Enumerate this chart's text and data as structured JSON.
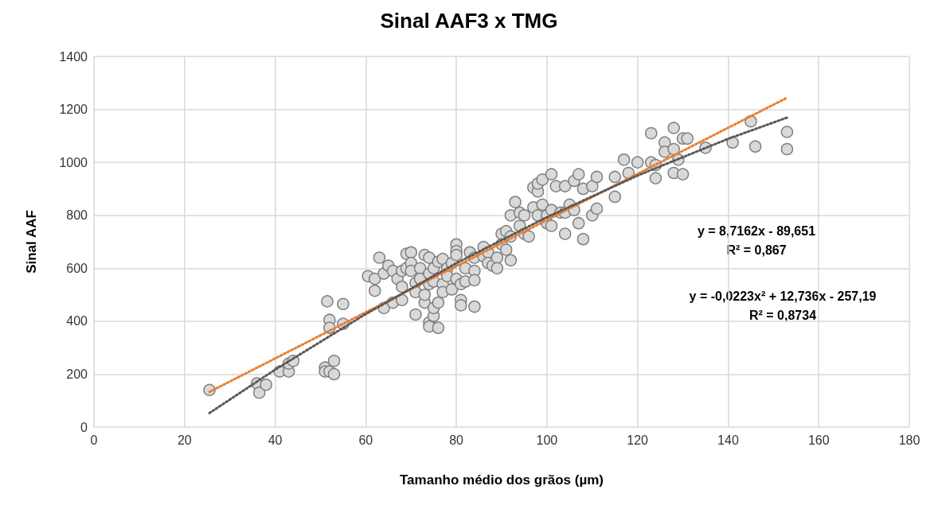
{
  "chart_data": {
    "type": "scatter",
    "title": "Sinal AAF3 x TMG",
    "xlabel": "Tamanho médio dos grãos (µm)",
    "ylabel": "Sinal AAF",
    "xlim": [
      0,
      180
    ],
    "xticks": [
      0,
      20,
      40,
      60,
      80,
      100,
      120,
      140,
      160,
      180
    ],
    "ylim": [
      0,
      1400
    ],
    "yticks": [
      0,
      200,
      400,
      600,
      800,
      1000,
      1200,
      1400
    ],
    "grid": true,
    "marker": "circle",
    "annotations": [
      "y = 8,7162x - 89,651\nR² = 0,867",
      "y = -0,0223x² + 12,736x - 257,19\nR² = 0,8734"
    ],
    "series": [
      {
        "color": "#d9d9d9",
        "x": [
          25.5,
          36,
          36.5,
          38,
          41,
          43,
          43,
          44,
          51,
          51,
          52,
          53,
          53,
          51.5,
          55,
          52,
          52,
          55,
          60.5,
          62,
          62,
          63,
          64,
          64,
          65,
          66,
          66,
          67,
          68,
          68,
          68,
          69,
          69,
          70,
          70,
          70,
          71,
          71,
          71,
          72,
          72,
          73,
          73,
          73,
          74,
          74,
          74,
          74,
          74,
          75,
          75,
          75,
          75,
          76,
          76,
          76,
          77,
          77,
          77,
          78,
          78,
          79,
          79,
          80,
          80,
          80,
          80,
          81,
          81,
          81,
          82,
          82,
          83,
          84,
          84,
          84,
          84,
          86,
          86,
          87,
          87,
          88,
          89,
          89,
          90,
          90,
          91,
          91,
          92,
          92,
          92,
          93,
          94,
          94,
          95,
          95,
          96,
          97,
          97,
          98,
          98,
          98,
          99,
          99,
          100,
          100,
          101,
          101,
          101,
          102,
          103,
          104,
          104,
          104,
          105,
          106,
          106,
          107,
          107,
          108,
          108,
          110,
          110,
          111,
          111,
          115,
          115,
          117,
          118,
          120,
          123,
          123,
          124,
          124,
          126,
          126,
          128,
          128,
          128,
          129,
          130,
          130,
          131,
          135,
          141,
          145,
          146,
          153,
          153
        ],
        "values": [
          140,
          165,
          130,
          160,
          210,
          210,
          240,
          250,
          225,
          210,
          210,
          250,
          200,
          475,
          465,
          405,
          375,
          390,
          570,
          560,
          515,
          640,
          450,
          580,
          610,
          470,
          590,
          560,
          590,
          530,
          480,
          655,
          600,
          660,
          620,
          590,
          545,
          510,
          425,
          600,
          560,
          470,
          500,
          650,
          640,
          580,
          540,
          395,
          380,
          420,
          450,
          550,
          600,
          625,
          470,
          375,
          635,
          540,
          510,
          600,
          570,
          620,
          520,
          690,
          665,
          650,
          560,
          540,
          480,
          460,
          600,
          550,
          660,
          640,
          590,
          555,
          455,
          680,
          645,
          660,
          620,
          610,
          640,
          600,
          730,
          690,
          740,
          670,
          800,
          720,
          630,
          850,
          810,
          760,
          800,
          730,
          720,
          905,
          830,
          890,
          920,
          800,
          935,
          840,
          800,
          770,
          955,
          820,
          760,
          910,
          810,
          910,
          810,
          730,
          840,
          930,
          820,
          955,
          770,
          900,
          710,
          910,
          800,
          945,
          825,
          945,
          870,
          1010,
          960,
          1000,
          1110,
          1000,
          940,
          990,
          1075,
          1040,
          1130,
          1050,
          960,
          1010,
          1090,
          955,
          1090,
          1055,
          1075,
          1155,
          1060,
          1115,
          1050
        ]
      },
      {
        "type": "line",
        "color": "#ed7d31",
        "marker": "none",
        "line_style": "dotted",
        "x": [
          25.5,
          153
        ],
        "values": [
          133,
          1244
        ]
      },
      {
        "type": "line",
        "color": "#595959",
        "marker": "none",
        "line_style": "dotted",
        "x": [
          25.5,
          40,
          60,
          80,
          100,
          120,
          140,
          153
        ],
        "values": [
          53,
          217,
          427,
          619,
          793,
          950,
          1089,
          1169
        ]
      }
    ]
  }
}
